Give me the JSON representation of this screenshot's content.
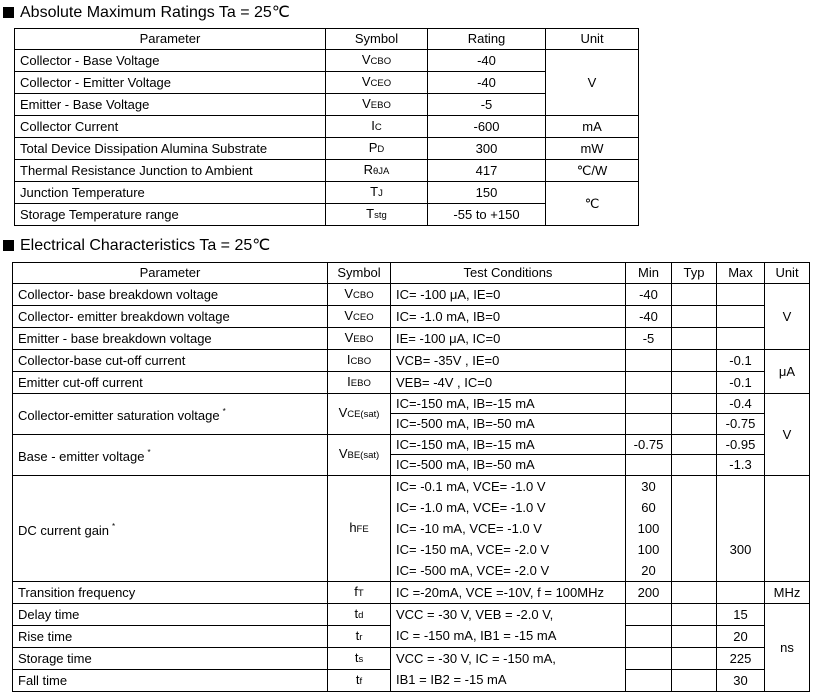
{
  "ratings": {
    "title": "Absolute Maximum Ratings Ta = 25℃",
    "headers": [
      "Parameter",
      "Symbol",
      "Rating",
      "Unit"
    ],
    "rows": [
      {
        "parameter": "Collector - Base Voltage",
        "symbol": {
          "main": "V",
          "sub": "CBO"
        },
        "rating": "-40",
        "unit": "V",
        "unit_span": 3
      },
      {
        "parameter": "Collector - Emitter Voltage",
        "symbol": {
          "main": "V",
          "sub": "CEO"
        },
        "rating": "-40"
      },
      {
        "parameter": "Emitter - Base Voltage",
        "symbol": {
          "main": "V",
          "sub": "EBO"
        },
        "rating": "-5"
      },
      {
        "parameter": "Collector Current",
        "symbol": {
          "main": "I",
          "sub": "C"
        },
        "rating": "-600",
        "unit": "mA",
        "unit_span": 1
      },
      {
        "parameter": "Total Device Dissipation Alumina Substrate",
        "symbol": {
          "main": "P",
          "sub": "D"
        },
        "rating": "300",
        "unit": "mW",
        "unit_span": 1
      },
      {
        "parameter": "Thermal Resistance Junction to Ambient",
        "symbol": {
          "main": "R",
          "sub": "θJA"
        },
        "rating": "417",
        "unit": "℃/W",
        "unit_span": 1
      },
      {
        "parameter": "Junction Temperature",
        "symbol": {
          "main": "T",
          "sub": "J"
        },
        "rating": "150",
        "unit": "℃",
        "unit_span": 2
      },
      {
        "parameter": "Storage Temperature range",
        "symbol": {
          "main": "T",
          "sub": "stg"
        },
        "rating": "-55 to +150"
      }
    ]
  },
  "electrical": {
    "title": "Electrical Characteristics Ta = 25℃",
    "headers": [
      "Parameter",
      "Symbol",
      "Test Conditions",
      "Min",
      "Typ",
      "Max",
      "Unit"
    ],
    "rows": [
      {
        "parameter": "Collector- base breakdown voltage",
        "symbol": {
          "main": "V",
          "sub": "CBO"
        },
        "conditions": [
          "IC= -100 μA,  IE=0"
        ],
        "min": [
          "-40"
        ],
        "typ": [
          ""
        ],
        "max": [
          ""
        ],
        "unit": "V",
        "unit_span": 3
      },
      {
        "parameter": "Collector- emitter breakdown voltage",
        "symbol": {
          "main": "V",
          "sub": "CEO"
        },
        "conditions": [
          "IC= -1.0 mA,  IB=0"
        ],
        "min": [
          "-40"
        ],
        "typ": [
          ""
        ],
        "max": [
          ""
        ]
      },
      {
        "parameter": "Emitter - base breakdown voltage",
        "symbol": {
          "main": "V",
          "sub": "EBO"
        },
        "conditions": [
          "IE= -100 μA,  IC=0"
        ],
        "min": [
          "-5"
        ],
        "typ": [
          ""
        ],
        "max": [
          ""
        ]
      },
      {
        "parameter": "Collector-base cut-off current",
        "symbol": {
          "main": "I",
          "sub": "CBO"
        },
        "conditions": [
          "VCB= -35V , IE=0"
        ],
        "min": [
          ""
        ],
        "typ": [
          ""
        ],
        "max": [
          "-0.1"
        ],
        "unit": "μA",
        "unit_span": 2
      },
      {
        "parameter": "Emitter cut-off current",
        "symbol": {
          "main": "I",
          "sub": "EBO"
        },
        "conditions": [
          "VEB= -4V , IC=0"
        ],
        "min": [
          ""
        ],
        "typ": [
          ""
        ],
        "max": [
          "-0.1"
        ]
      },
      {
        "parameter": "Collector-emitter saturation voltage",
        "note": "*",
        "symbol": {
          "main": "V",
          "sub": "CE(sat)"
        },
        "param_span": 2,
        "conditions": [
          "IC=-150 mA, IB=-15 mA"
        ],
        "min": [
          ""
        ],
        "typ": [
          ""
        ],
        "max": [
          "-0.4"
        ],
        "unit": "V",
        "unit_span": 4
      },
      {
        "conditions": [
          "IC=-500 mA, IB=-50 mA"
        ],
        "min": [
          ""
        ],
        "typ": [
          ""
        ],
        "max": [
          "-0.75"
        ]
      },
      {
        "parameter": "Base - emitter voltage",
        "note": "*",
        "symbol": {
          "main": "V",
          "sub": "BE(sat)"
        },
        "param_span": 2,
        "conditions": [
          "IC=-150 mA, IB=-15 mA"
        ],
        "min": [
          "-0.75"
        ],
        "typ": [
          ""
        ],
        "max": [
          "-0.95"
        ]
      },
      {
        "conditions": [
          "IC=-500 mA, IB=-50 mA"
        ],
        "min": [
          ""
        ],
        "typ": [
          ""
        ],
        "max": [
          "-1.3"
        ]
      },
      {
        "parameter": "DC current gain",
        "note": "*",
        "symbol": {
          "main": "h",
          "sub": "FE"
        },
        "conditions": [
          "IC= -0.1 mA, VCE= -1.0 V",
          "IC= -1.0 mA, VCE= -1.0 V",
          "IC= -10 mA, VCE= -1.0 V",
          "IC= -150 mA, VCE= -2.0 V",
          "IC= -500 mA, VCE= -2.0 V"
        ],
        "min": [
          "30",
          "60",
          "100",
          "100",
          "20"
        ],
        "typ": [
          "",
          "",
          "",
          "",
          ""
        ],
        "max": [
          "",
          "",
          "",
          "300",
          ""
        ],
        "unit": "",
        "unit_span": 1
      },
      {
        "parameter": "Transition frequency",
        "symbol": {
          "main": "f",
          "sub": "T"
        },
        "conditions": [
          "IC =-20mA, VCE =-10V, f = 100MHz"
        ],
        "min": [
          "200"
        ],
        "typ": [
          ""
        ],
        "max": [
          ""
        ],
        "unit": "MHz",
        "unit_span": 1
      },
      {
        "parameter": "Delay time",
        "symbol": {
          "main": "t",
          "sub": "d"
        },
        "conditions": [
          "VCC = -30 V, VEB = -2.0 V,",
          "IC = -150 mA, IB1 = -15 mA"
        ],
        "cond_span": 2,
        "min": [
          ""
        ],
        "typ": [
          ""
        ],
        "max": [
          "15"
        ],
        "unit": "ns",
        "unit_span": 4
      },
      {
        "parameter": "Rise time",
        "symbol": {
          "main": "t",
          "sub": "r"
        },
        "min": [
          ""
        ],
        "typ": [
          ""
        ],
        "max": [
          "20"
        ]
      },
      {
        "parameter": "Storage time",
        "symbol": {
          "main": "t",
          "sub": "s"
        },
        "conditions": [
          "VCC = -30 V, IC = -150 mA,",
          "IB1 = IB2 = -15 mA"
        ],
        "cond_span": 2,
        "min": [
          ""
        ],
        "typ": [
          ""
        ],
        "max": [
          "225"
        ]
      },
      {
        "parameter": "Fall time",
        "symbol": {
          "main": "t",
          "sub": "f"
        },
        "min": [
          ""
        ],
        "typ": [
          ""
        ],
        "max": [
          "30"
        ]
      }
    ]
  }
}
